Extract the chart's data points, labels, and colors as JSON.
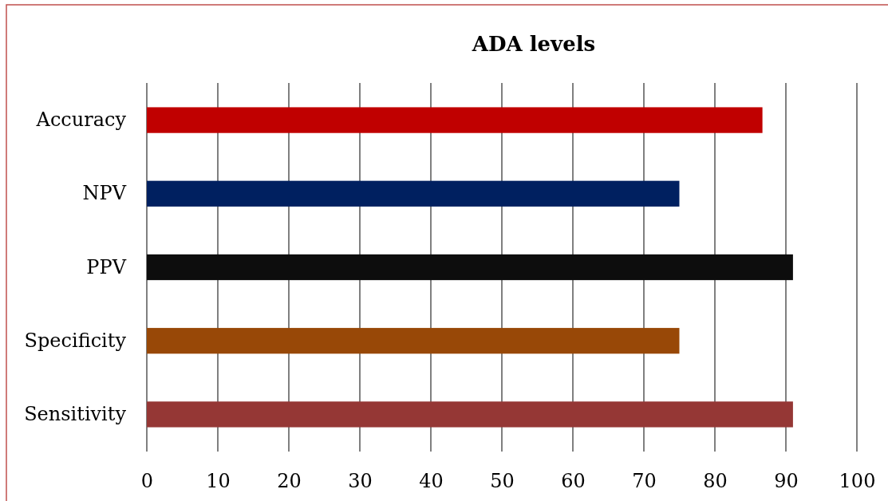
{
  "chart_data": {
    "type": "bar",
    "orientation": "horizontal",
    "title": "ADA levels",
    "categories": [
      "Accuracy",
      "NPV",
      "PPV",
      "Specificity",
      "Sensitivity"
    ],
    "values": [
      86.7,
      75,
      91,
      75,
      91
    ],
    "colors": [
      "#c00000",
      "#002060",
      "#0d0d0d",
      "#984807",
      "#953735"
    ],
    "xlim": [
      0,
      100
    ],
    "xticks": [
      0,
      10,
      20,
      30,
      40,
      50,
      60,
      70,
      80,
      90,
      100
    ],
    "grid": "x"
  }
}
